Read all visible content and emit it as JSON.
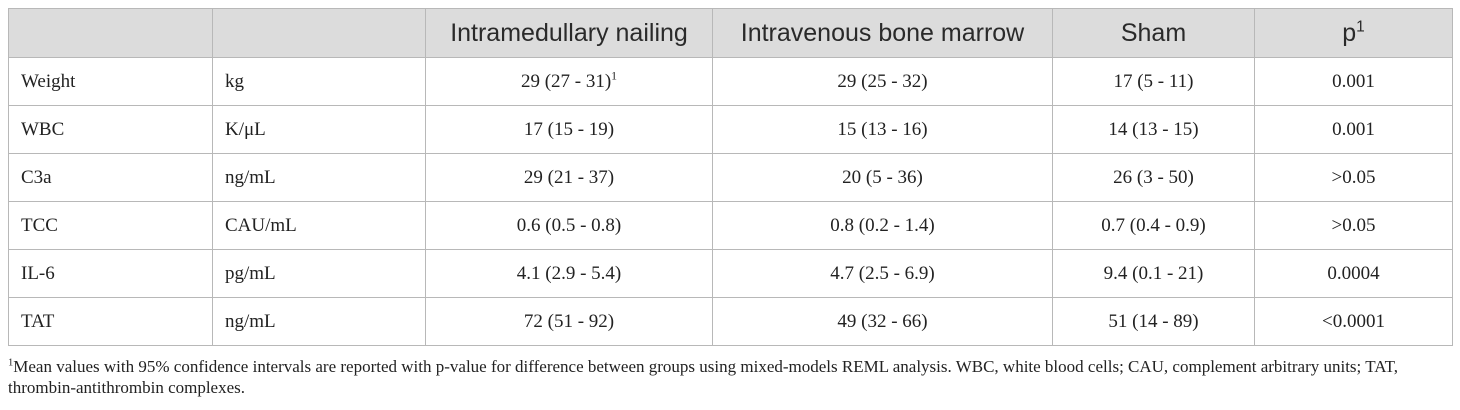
{
  "table": {
    "header": {
      "col0": "",
      "col1": "",
      "col2": "Intramedullary nailing",
      "col3": "Intravenous bone marrow",
      "col4": "Sham",
      "col5": "p",
      "col5_sup": "1"
    },
    "rows": [
      {
        "name": "Weight",
        "unit": "kg",
        "in": "29 (27 - 31)",
        "in_sup": "1",
        "ibm": "29 (25 - 32)",
        "sham": "17 (5 - 11)",
        "p": "0.001"
      },
      {
        "name": "WBC",
        "unit": "K/μL",
        "in": "17 (15 - 19)",
        "ibm": "15 (13 - 16)",
        "sham": "14 (13 - 15)",
        "p": "0.001"
      },
      {
        "name": "C3a",
        "unit": "ng/mL",
        "in": "29 (21 - 37)",
        "ibm": "20 (5 - 36)",
        "sham": "26 (3 - 50)",
        "p": ">0.05"
      },
      {
        "name": "TCC",
        "unit": "CAU/mL",
        "in": "0.6 (0.5 - 0.8)",
        "ibm": "0.8 (0.2 - 1.4)",
        "sham": "0.7 (0.4 - 0.9)",
        "p": ">0.05"
      },
      {
        "name": "IL-6",
        "unit": "pg/mL",
        "in": "4.1 (2.9 - 5.4)",
        "ibm": "4.7 (2.5 - 6.9)",
        "sham": "9.4 (0.1 - 21)",
        "p": "0.0004"
      },
      {
        "name": "TAT",
        "unit": "ng/mL",
        "in": "72 (51 - 92)",
        "ibm": "49 (32 - 66)",
        "sham": "51 (14 - 89)",
        "p": "<0.0001"
      }
    ]
  },
  "footnote": {
    "sup": "1",
    "text": "Mean values with 95% confidence intervals are reported with p-value for difference between groups using mixed-models REML analysis. WBC, white blood cells; CAU, complement arbitrary units; TAT, thrombin-antithrombin complexes."
  }
}
